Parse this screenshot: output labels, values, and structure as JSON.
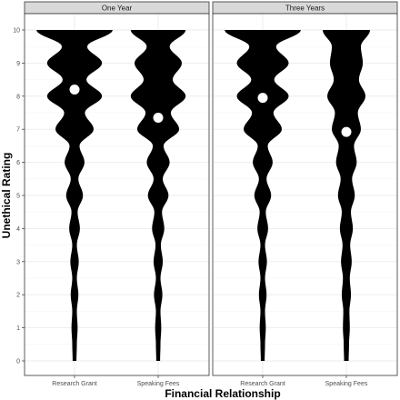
{
  "chart_data": {
    "type": "violin",
    "xlabel": "Financial Relationship",
    "ylabel": "Unethical Rating",
    "ylim": [
      0,
      10
    ],
    "yticks": [
      0,
      1,
      2,
      3,
      4,
      5,
      6,
      7,
      8,
      9,
      10
    ],
    "categories": [
      "Research Grant",
      "Speaking Fees"
    ],
    "grid": true,
    "colors": {
      "violin": "#000000",
      "mean_point": "#ffffff",
      "strip": "#d9d9d9",
      "panel_border": "#333333",
      "grid": "#ebebeb"
    },
    "panels": [
      {
        "title": "One Year",
        "violins": [
          {
            "category": "Research Grant",
            "mean": 8.2,
            "density": [
              [
                0,
                0.05
              ],
              [
                0.5,
                0.06
              ],
              [
                1,
                0.08
              ],
              [
                1.5,
                0.06
              ],
              [
                2,
                0.1
              ],
              [
                2.5,
                0.06
              ],
              [
                3,
                0.11
              ],
              [
                3.5,
                0.06
              ],
              [
                4,
                0.14
              ],
              [
                4.5,
                0.08
              ],
              [
                5,
                0.22
              ],
              [
                5.5,
                0.1
              ],
              [
                6,
                0.26
              ],
              [
                6.5,
                0.13
              ],
              [
                7,
                0.5
              ],
              [
                7.5,
                0.27
              ],
              [
                8,
                0.72
              ],
              [
                8.5,
                0.31
              ],
              [
                9,
                0.72
              ],
              [
                9.5,
                0.33
              ],
              [
                10,
                1
              ]
            ]
          },
          {
            "category": "Speaking Fees",
            "mean": 7.35,
            "density": [
              [
                0,
                0.05
              ],
              [
                0.5,
                0.06
              ],
              [
                1,
                0.08
              ],
              [
                1.5,
                0.06
              ],
              [
                2,
                0.11
              ],
              [
                2.5,
                0.06
              ],
              [
                3,
                0.12
              ],
              [
                3.5,
                0.07
              ],
              [
                4,
                0.16
              ],
              [
                4.5,
                0.1
              ],
              [
                5,
                0.27
              ],
              [
                5.5,
                0.12
              ],
              [
                6,
                0.3
              ],
              [
                6.5,
                0.14
              ],
              [
                7,
                0.55
              ],
              [
                7.5,
                0.33
              ],
              [
                8,
                0.72
              ],
              [
                8.5,
                0.38
              ],
              [
                9,
                0.62
              ],
              [
                9.5,
                0.3
              ],
              [
                10,
                0.72
              ]
            ]
          }
        ]
      },
      {
        "title": "Three Years",
        "violins": [
          {
            "category": "Research Grant",
            "mean": 7.95,
            "density": [
              [
                0,
                0.05
              ],
              [
                0.5,
                0.06
              ],
              [
                1,
                0.08
              ],
              [
                1.5,
                0.06
              ],
              [
                2,
                0.1
              ],
              [
                2.5,
                0.06
              ],
              [
                3,
                0.11
              ],
              [
                3.5,
                0.06
              ],
              [
                4,
                0.14
              ],
              [
                4.5,
                0.08
              ],
              [
                5,
                0.22
              ],
              [
                5.5,
                0.1
              ],
              [
                6,
                0.26
              ],
              [
                6.5,
                0.13
              ],
              [
                7,
                0.5
              ],
              [
                7.5,
                0.28
              ],
              [
                8,
                0.68
              ],
              [
                8.5,
                0.3
              ],
              [
                9,
                0.68
              ],
              [
                9.5,
                0.35
              ],
              [
                10,
                1
              ]
            ]
          },
          {
            "category": "Speaking Fees",
            "mean": 6.92,
            "density": [
              [
                0,
                0.06
              ],
              [
                0.5,
                0.07
              ],
              [
                1,
                0.09
              ],
              [
                1.5,
                0.08
              ],
              [
                2,
                0.12
              ],
              [
                2.5,
                0.09
              ],
              [
                3,
                0.14
              ],
              [
                3.5,
                0.1
              ],
              [
                4,
                0.17
              ],
              [
                4.5,
                0.12
              ],
              [
                5,
                0.22
              ],
              [
                5.5,
                0.15
              ],
              [
                6,
                0.27
              ],
              [
                6.5,
                0.2
              ],
              [
                7,
                0.38
              ],
              [
                7.5,
                0.3
              ],
              [
                8,
                0.5
              ],
              [
                8.5,
                0.33
              ],
              [
                9,
                0.43
              ],
              [
                9.5,
                0.38
              ],
              [
                10,
                0.62
              ]
            ]
          }
        ]
      }
    ]
  }
}
